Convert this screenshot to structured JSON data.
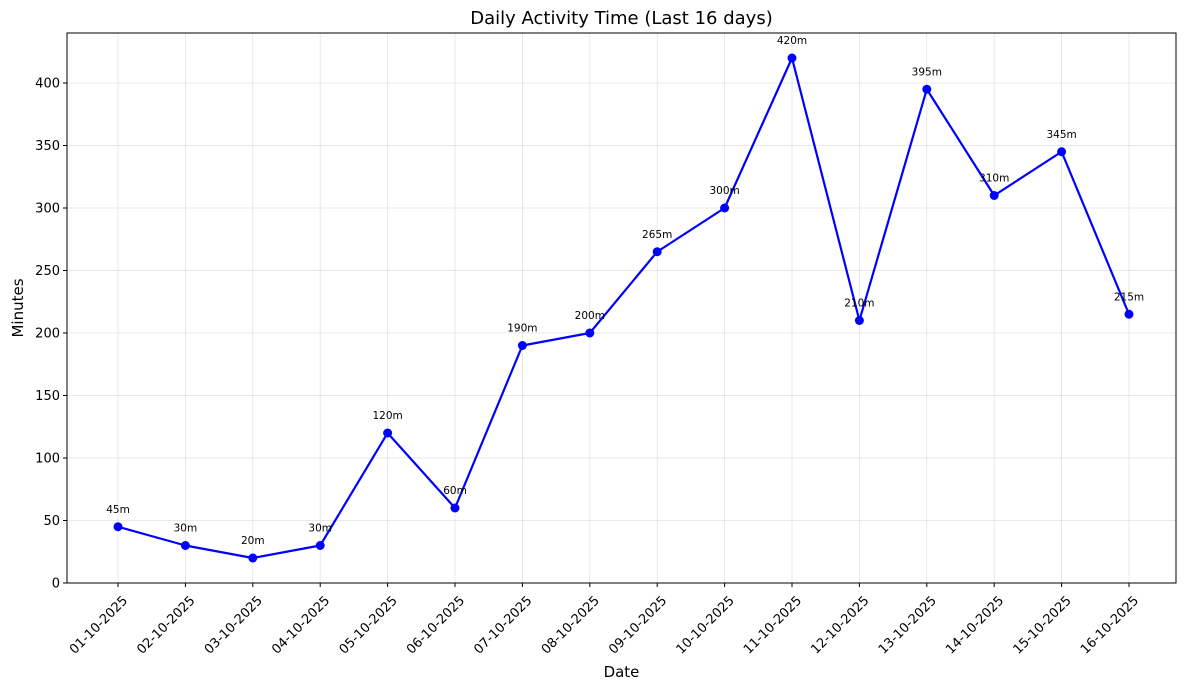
{
  "chart_data": {
    "type": "line",
    "title": "Daily Activity Time (Last 16 days)",
    "xlabel": "Date",
    "ylabel": "Minutes",
    "ylim": [
      0,
      440
    ],
    "yticks": [
      0,
      50,
      100,
      150,
      200,
      250,
      300,
      350,
      400
    ],
    "grid": true,
    "color": "#0000ff",
    "x": [
      "01-10-2025",
      "02-10-2025",
      "03-10-2025",
      "04-10-2025",
      "05-10-2025",
      "06-10-2025",
      "07-10-2025",
      "08-10-2025",
      "09-10-2025",
      "10-10-2025",
      "11-10-2025",
      "12-10-2025",
      "13-10-2025",
      "14-10-2025",
      "15-10-2025",
      "16-10-2025"
    ],
    "series": [
      {
        "values": [
          45,
          30,
          20,
          30,
          120,
          60,
          190,
          200,
          265,
          300,
          420,
          210,
          395,
          310,
          345,
          215
        ],
        "labels": [
          "45m",
          "30m",
          "20m",
          "30m",
          "120m",
          "60m",
          "190m",
          "200m",
          "265m",
          "300m",
          "420m",
          "210m",
          "395m",
          "310m",
          "345m",
          "215m"
        ]
      }
    ]
  }
}
